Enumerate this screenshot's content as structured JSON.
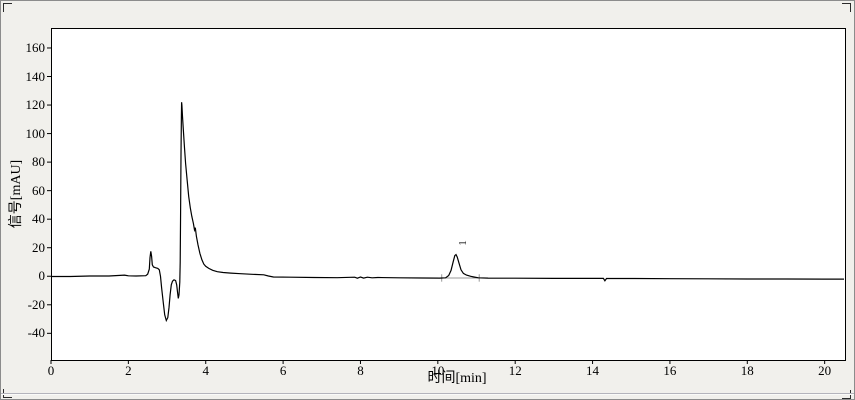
{
  "window": {
    "kind": "embedded chromatogram chart object",
    "selected": true
  },
  "colors": {
    "background": "#f1f0ec",
    "plot_background": "#ffffff",
    "trace": "#000000",
    "frame": "#000000",
    "text": "#000000",
    "integration": "#999999",
    "groove": "#b4b4bc",
    "handle": "#2a2a2a"
  },
  "chart_data": {
    "type": "line",
    "title": "",
    "xlabel": "时间[min]",
    "ylabel": "信号[mAU]",
    "xlim": [
      0,
      20.5
    ],
    "ylim": [
      -58,
      174
    ],
    "x_ticks": [
      0,
      2,
      4,
      6,
      8,
      10,
      12,
      14,
      16,
      18,
      20
    ],
    "y_ticks": [
      -40,
      -20,
      0,
      20,
      40,
      60,
      80,
      100,
      120,
      140,
      160
    ],
    "grid": false,
    "legend": false,
    "line_color": "#000000",
    "series": [
      {
        "name": "signal",
        "points": [
          [
            0.0,
            -0.2
          ],
          [
            0.5,
            -0.2
          ],
          [
            1.0,
            0.2
          ],
          [
            1.5,
            0.2
          ],
          [
            1.9,
            0.8
          ],
          [
            2.0,
            0.3
          ],
          [
            2.2,
            0.2
          ],
          [
            2.45,
            0.4
          ],
          [
            2.5,
            1.5
          ],
          [
            2.54,
            5
          ],
          [
            2.56,
            13
          ],
          [
            2.58,
            17.5
          ],
          [
            2.6,
            14
          ],
          [
            2.62,
            8
          ],
          [
            2.65,
            6.5
          ],
          [
            2.7,
            6
          ],
          [
            2.76,
            5.5
          ],
          [
            2.8,
            4.5
          ],
          [
            2.83,
            0
          ],
          [
            2.86,
            -8
          ],
          [
            2.9,
            -18
          ],
          [
            2.94,
            -27
          ],
          [
            2.98,
            -31
          ],
          [
            3.02,
            -29
          ],
          [
            3.05,
            -22
          ],
          [
            3.08,
            -13
          ],
          [
            3.11,
            -6
          ],
          [
            3.14,
            -3.5
          ],
          [
            3.18,
            -2.5
          ],
          [
            3.22,
            -3
          ],
          [
            3.25,
            -6
          ],
          [
            3.27,
            -11
          ],
          [
            3.29,
            -15.5
          ],
          [
            3.31,
            -13
          ],
          [
            3.33,
            -4
          ],
          [
            3.34,
            10
          ],
          [
            3.35,
            45
          ],
          [
            3.36,
            85
          ],
          [
            3.37,
            112
          ],
          [
            3.375,
            122
          ],
          [
            3.385,
            120
          ],
          [
            3.4,
            112
          ],
          [
            3.42,
            103
          ],
          [
            3.45,
            90
          ],
          [
            3.48,
            79
          ],
          [
            3.52,
            67
          ],
          [
            3.56,
            56
          ],
          [
            3.6,
            48
          ],
          [
            3.64,
            42
          ],
          [
            3.68,
            37
          ],
          [
            3.71,
            32.5
          ],
          [
            3.73,
            34
          ],
          [
            3.76,
            28
          ],
          [
            3.8,
            22
          ],
          [
            3.85,
            16
          ],
          [
            3.9,
            11.5
          ],
          [
            3.95,
            8.5
          ],
          [
            4.0,
            7
          ],
          [
            4.08,
            5.5
          ],
          [
            4.18,
            4.2
          ],
          [
            4.3,
            3.2
          ],
          [
            4.45,
            2.6
          ],
          [
            4.65,
            2.2
          ],
          [
            4.9,
            1.8
          ],
          [
            5.2,
            1.4
          ],
          [
            5.5,
            1.0
          ],
          [
            5.62,
            0.2
          ],
          [
            5.75,
            -0.5
          ],
          [
            6.2,
            -0.7
          ],
          [
            6.8,
            -0.9
          ],
          [
            7.4,
            -1.0
          ],
          [
            7.85,
            -0.7
          ],
          [
            7.92,
            -1.4
          ],
          [
            8.0,
            -0.5
          ],
          [
            8.08,
            -1.3
          ],
          [
            8.18,
            -0.7
          ],
          [
            8.3,
            -1.1
          ],
          [
            8.45,
            -0.9
          ],
          [
            9.0,
            -1.1
          ],
          [
            9.6,
            -1.2
          ],
          [
            10.05,
            -1.3
          ],
          [
            10.2,
            -1.1
          ],
          [
            10.28,
            0.5
          ],
          [
            10.34,
            4
          ],
          [
            10.4,
            10.5
          ],
          [
            10.44,
            14.5
          ],
          [
            10.47,
            15.2
          ],
          [
            10.5,
            13.5
          ],
          [
            10.55,
            9
          ],
          [
            10.6,
            4.5
          ],
          [
            10.66,
            2
          ],
          [
            10.74,
            0.8
          ],
          [
            10.85,
            0
          ],
          [
            10.95,
            -0.6
          ],
          [
            11.05,
            -1.1
          ],
          [
            11.3,
            -1.3
          ],
          [
            12.0,
            -1.4
          ],
          [
            13.0,
            -1.5
          ],
          [
            14.0,
            -1.5
          ],
          [
            14.28,
            -1.5
          ],
          [
            14.32,
            -3.2
          ],
          [
            14.36,
            -1.6
          ],
          [
            15.0,
            -1.6
          ],
          [
            16.0,
            -1.7
          ],
          [
            17.0,
            -1.8
          ],
          [
            18.0,
            -1.9
          ],
          [
            19.0,
            -1.9
          ],
          [
            20.0,
            -2.0
          ],
          [
            20.5,
            -2.0
          ]
        ]
      }
    ],
    "peaks": [
      {
        "label": "1",
        "apex_time_min": 10.47,
        "apex_mAU": 15.2,
        "label_t": 10.65,
        "label_mAU": 23.5
      }
    ],
    "integration": {
      "start_t": 10.1,
      "end_t": 11.07,
      "level_mAU": -1.2,
      "tick_half_height_mAU": 2.6,
      "color": "#999999"
    }
  }
}
